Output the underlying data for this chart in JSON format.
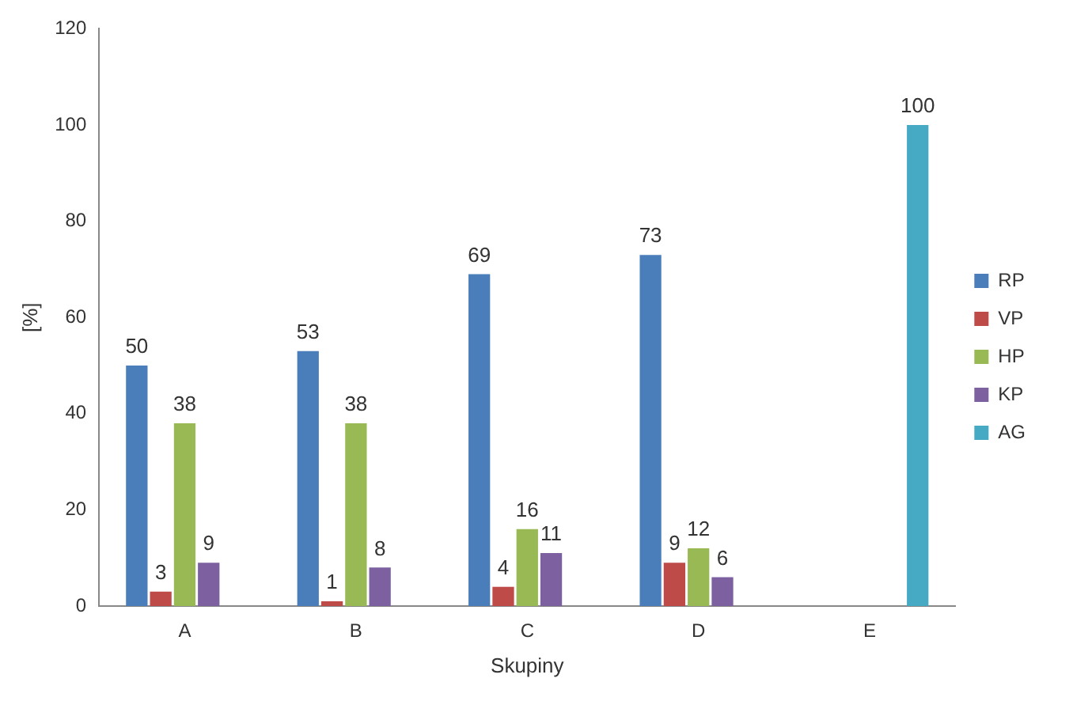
{
  "chart_data": {
    "type": "bar",
    "xlabel": "Skupiny",
    "ylabel": "[%]",
    "categories": [
      "A",
      "B",
      "C",
      "D",
      "E"
    ],
    "series": [
      {
        "name": "RP",
        "color": "#4a7ebb",
        "values": [
          50,
          53,
          69,
          73,
          null
        ]
      },
      {
        "name": "VP",
        "color": "#be4b48",
        "values": [
          3,
          1,
          4,
          9,
          null
        ]
      },
      {
        "name": "HP",
        "color": "#98b954",
        "values": [
          38,
          38,
          16,
          12,
          null
        ]
      },
      {
        "name": "KP",
        "color": "#7d60a0",
        "values": [
          9,
          8,
          11,
          6,
          null
        ]
      },
      {
        "name": "AG",
        "color": "#46aac5",
        "values": [
          null,
          null,
          null,
          null,
          100
        ]
      }
    ],
    "ylim": [
      0,
      120
    ],
    "yticks": [
      0,
      20,
      40,
      60,
      80,
      100,
      120
    ],
    "grid": false,
    "legend": "right",
    "data_labels": true
  }
}
